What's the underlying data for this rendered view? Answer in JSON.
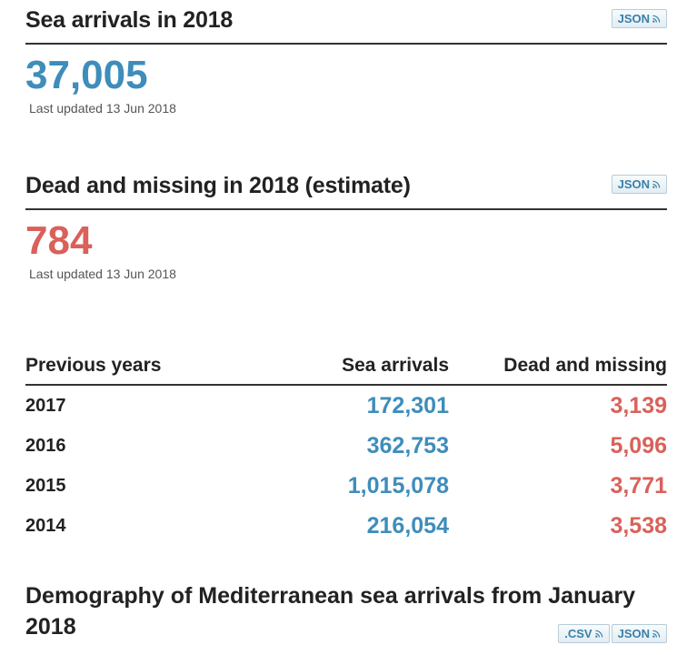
{
  "sea_arrivals": {
    "title": "Sea arrivals in 2018",
    "json_label": "JSON",
    "value": "37,005",
    "updated": "Last updated 13 Jun 2018"
  },
  "dead_missing": {
    "title": "Dead and missing in 2018 (estimate)",
    "json_label": "JSON",
    "value": "784",
    "updated": "Last updated 13 Jun 2018"
  },
  "previous_years": {
    "headers": [
      "Previous years",
      "Sea arrivals",
      "Dead and missing"
    ],
    "rows": [
      {
        "year": "2017",
        "arrivals": "172,301",
        "dead": "3,139"
      },
      {
        "year": "2016",
        "arrivals": "362,753",
        "dead": "5,096"
      },
      {
        "year": "2015",
        "arrivals": "1,015,078",
        "dead": "3,771"
      },
      {
        "year": "2014",
        "arrivals": "216,054",
        "dead": "3,538"
      }
    ]
  },
  "demography": {
    "title": "Demography of Mediterranean sea arrivals from January 2018",
    "csv_label": ".CSV",
    "json_label": "JSON"
  },
  "colors": {
    "arrivals": "#3e8dbb",
    "dead": "#d9615a"
  }
}
